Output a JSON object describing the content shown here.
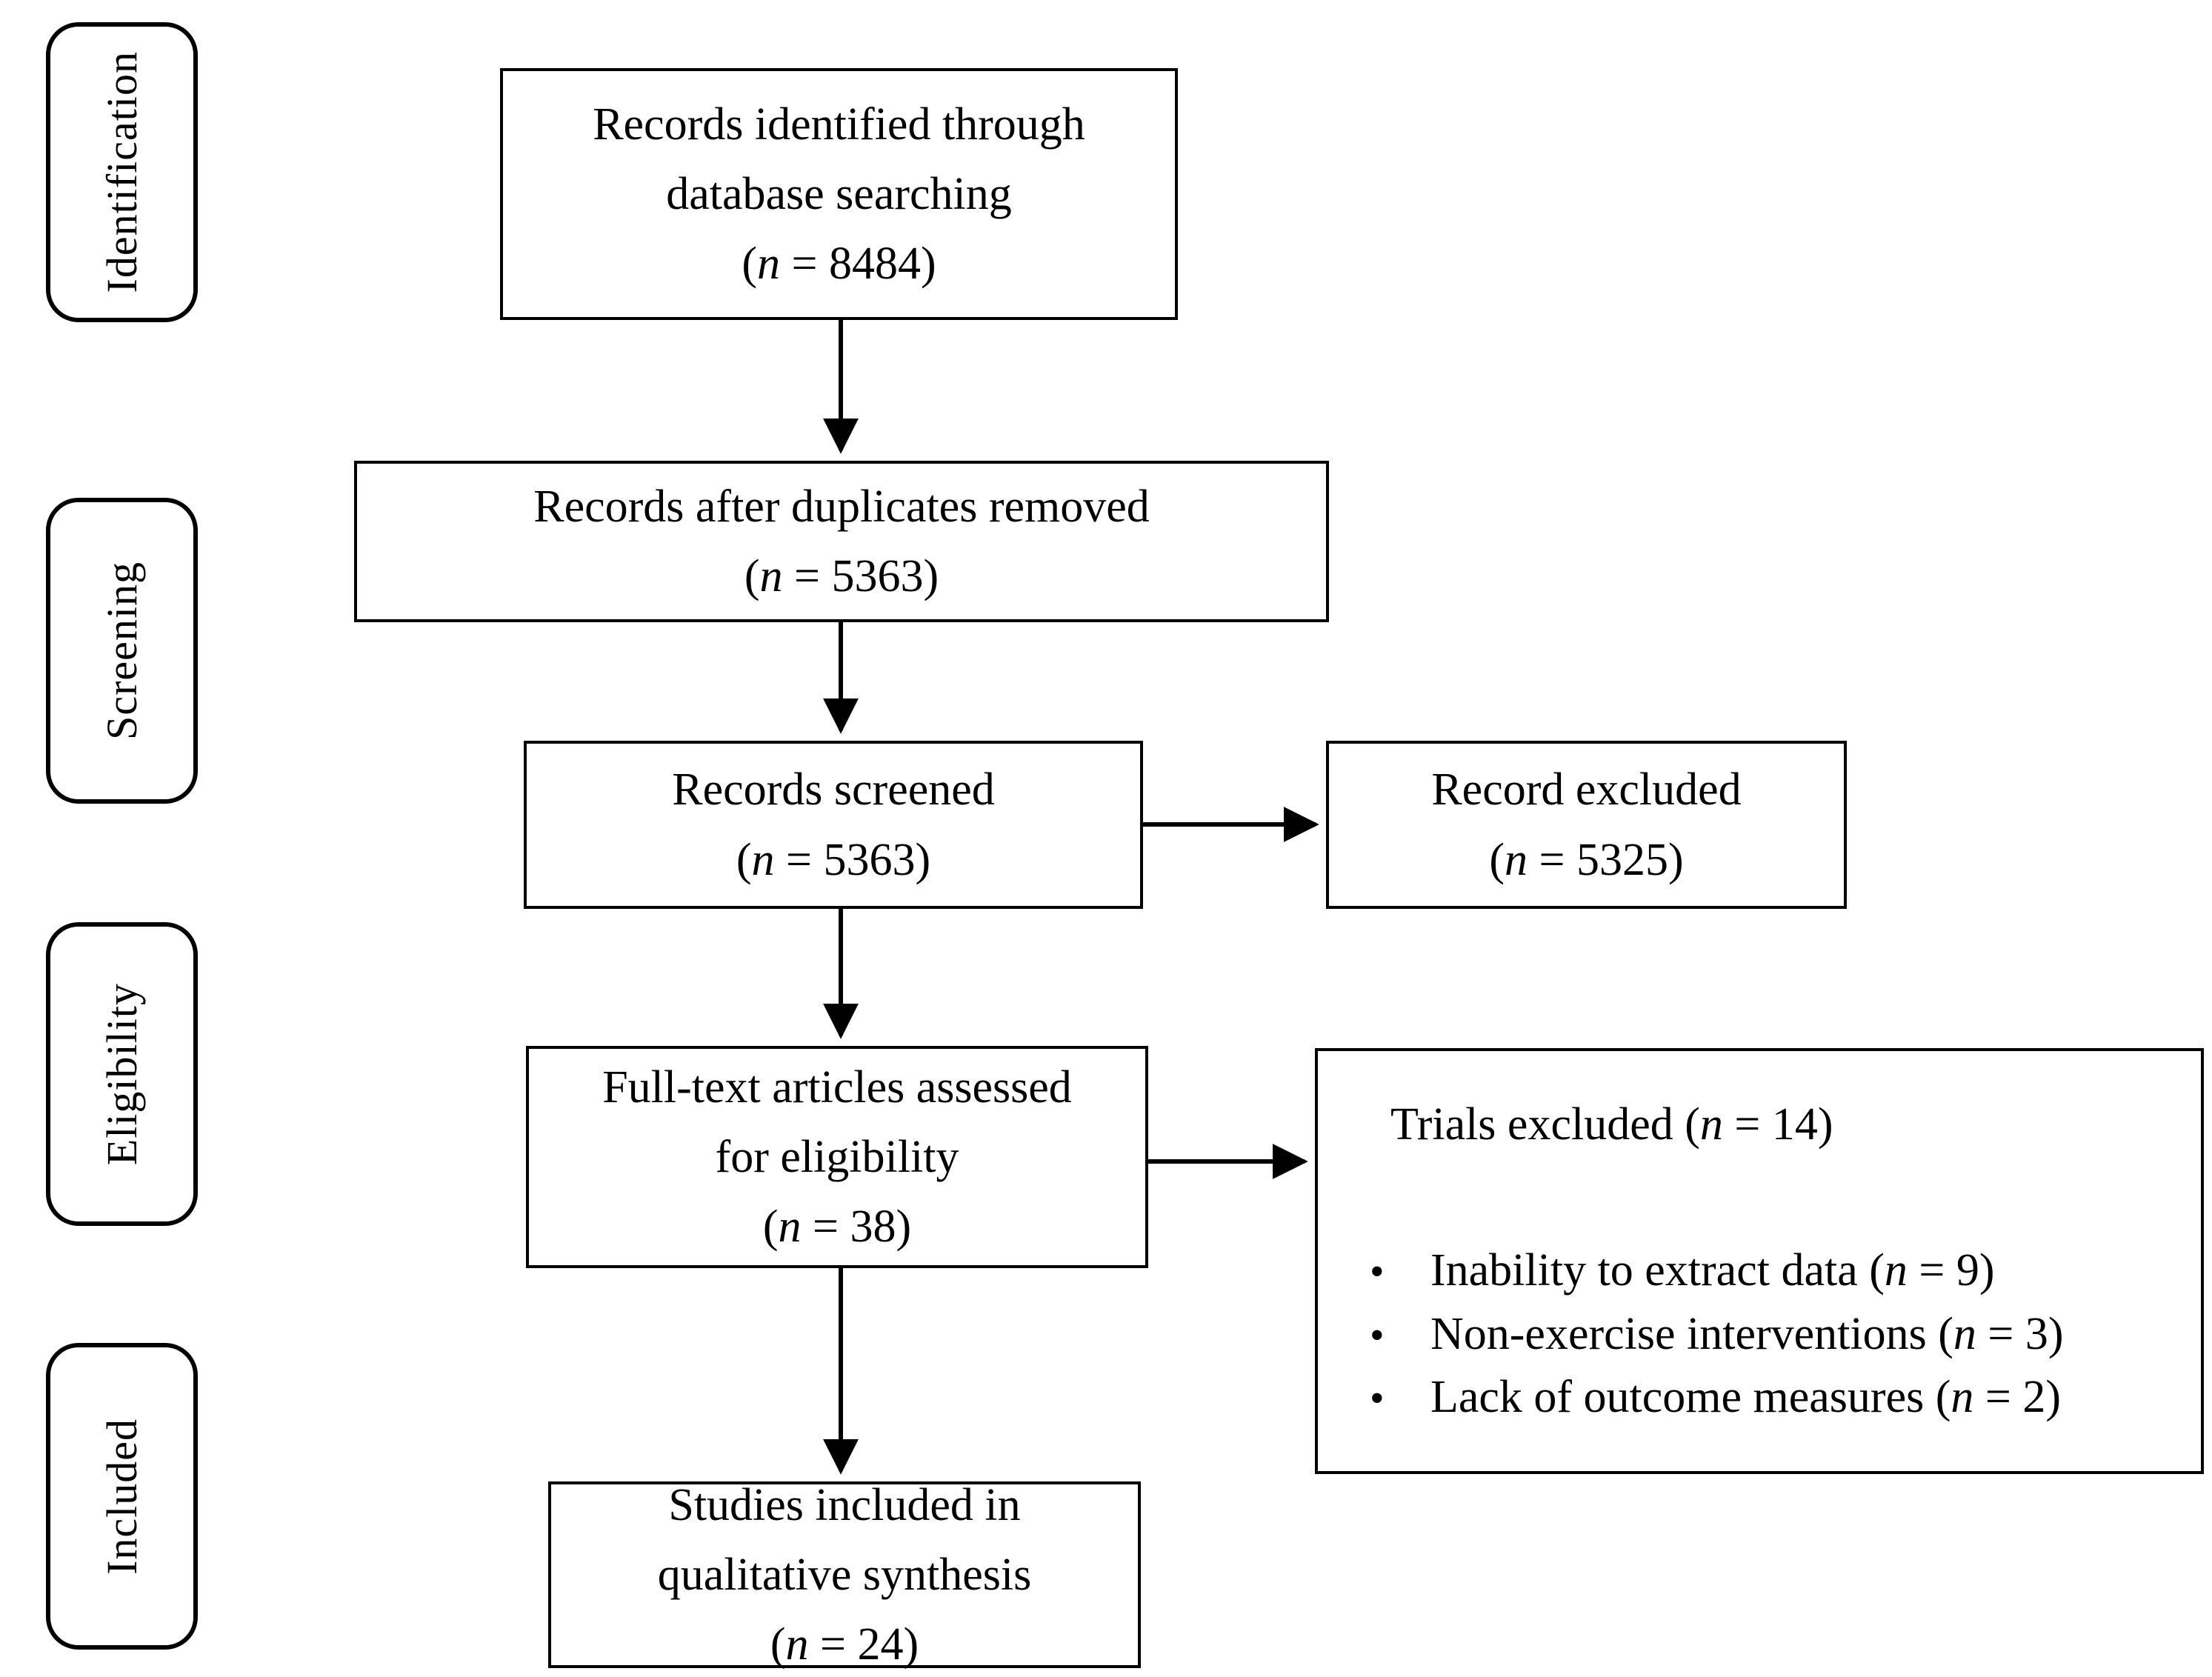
{
  "colors": {
    "line": "#000000",
    "text": "#000000",
    "background": "#ffffff"
  },
  "stages": [
    {
      "label": "Identification"
    },
    {
      "label": "Screening"
    },
    {
      "label": "Eligibility"
    },
    {
      "label": "Included"
    }
  ],
  "flow": {
    "identified": {
      "lines": [
        "Records identified through",
        "database searching",
        "(n = 8484)"
      ]
    },
    "deduplicated": {
      "lines": [
        "Records after duplicates removed",
        "(n = 5363)"
      ]
    },
    "screened": {
      "lines": [
        "Records screened",
        "(n = 5363)"
      ]
    },
    "record_excluded": {
      "lines": [
        "Record excluded",
        "(n = 5325)"
      ]
    },
    "fulltext_assessed": {
      "lines": [
        "Full-text articles assessed",
        "for eligibility",
        "(n = 38)"
      ]
    },
    "trials_excluded": {
      "title": "Trials excluded (n = 14)",
      "bullets": [
        "Inability to extract data (n = 9)",
        "Non-exercise interventions (n = 3)",
        "Lack of outcome measures (n = 2)"
      ]
    },
    "included_studies": {
      "lines": [
        "Studies included in",
        "qualitative synthesis",
        "(n = 24)"
      ]
    }
  }
}
